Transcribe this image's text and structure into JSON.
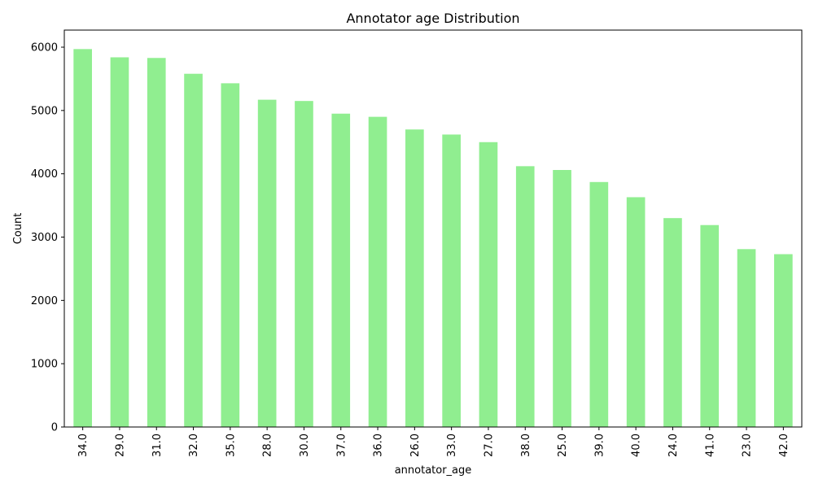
{
  "chart_data": {
    "type": "bar",
    "title": "Annotator age Distribution",
    "xlabel": "annotator_age",
    "ylabel": "Count",
    "categories": [
      "34.0",
      "29.0",
      "31.0",
      "32.0",
      "35.0",
      "28.0",
      "30.0",
      "37.0",
      "36.0",
      "26.0",
      "33.0",
      "27.0",
      "38.0",
      "25.0",
      "39.0",
      "40.0",
      "24.0",
      "41.0",
      "23.0",
      "42.0"
    ],
    "values": [
      5970,
      5840,
      5830,
      5580,
      5430,
      5170,
      5150,
      4950,
      4900,
      4700,
      4620,
      4500,
      4120,
      4060,
      3870,
      3630,
      3300,
      3190,
      2810,
      2730
    ],
    "y_ticks": [
      0,
      1000,
      2000,
      3000,
      4000,
      5000,
      6000
    ],
    "ylim": [
      0,
      6270
    ],
    "bar_color": "#90ee90",
    "grid": false,
    "legend": "none"
  }
}
